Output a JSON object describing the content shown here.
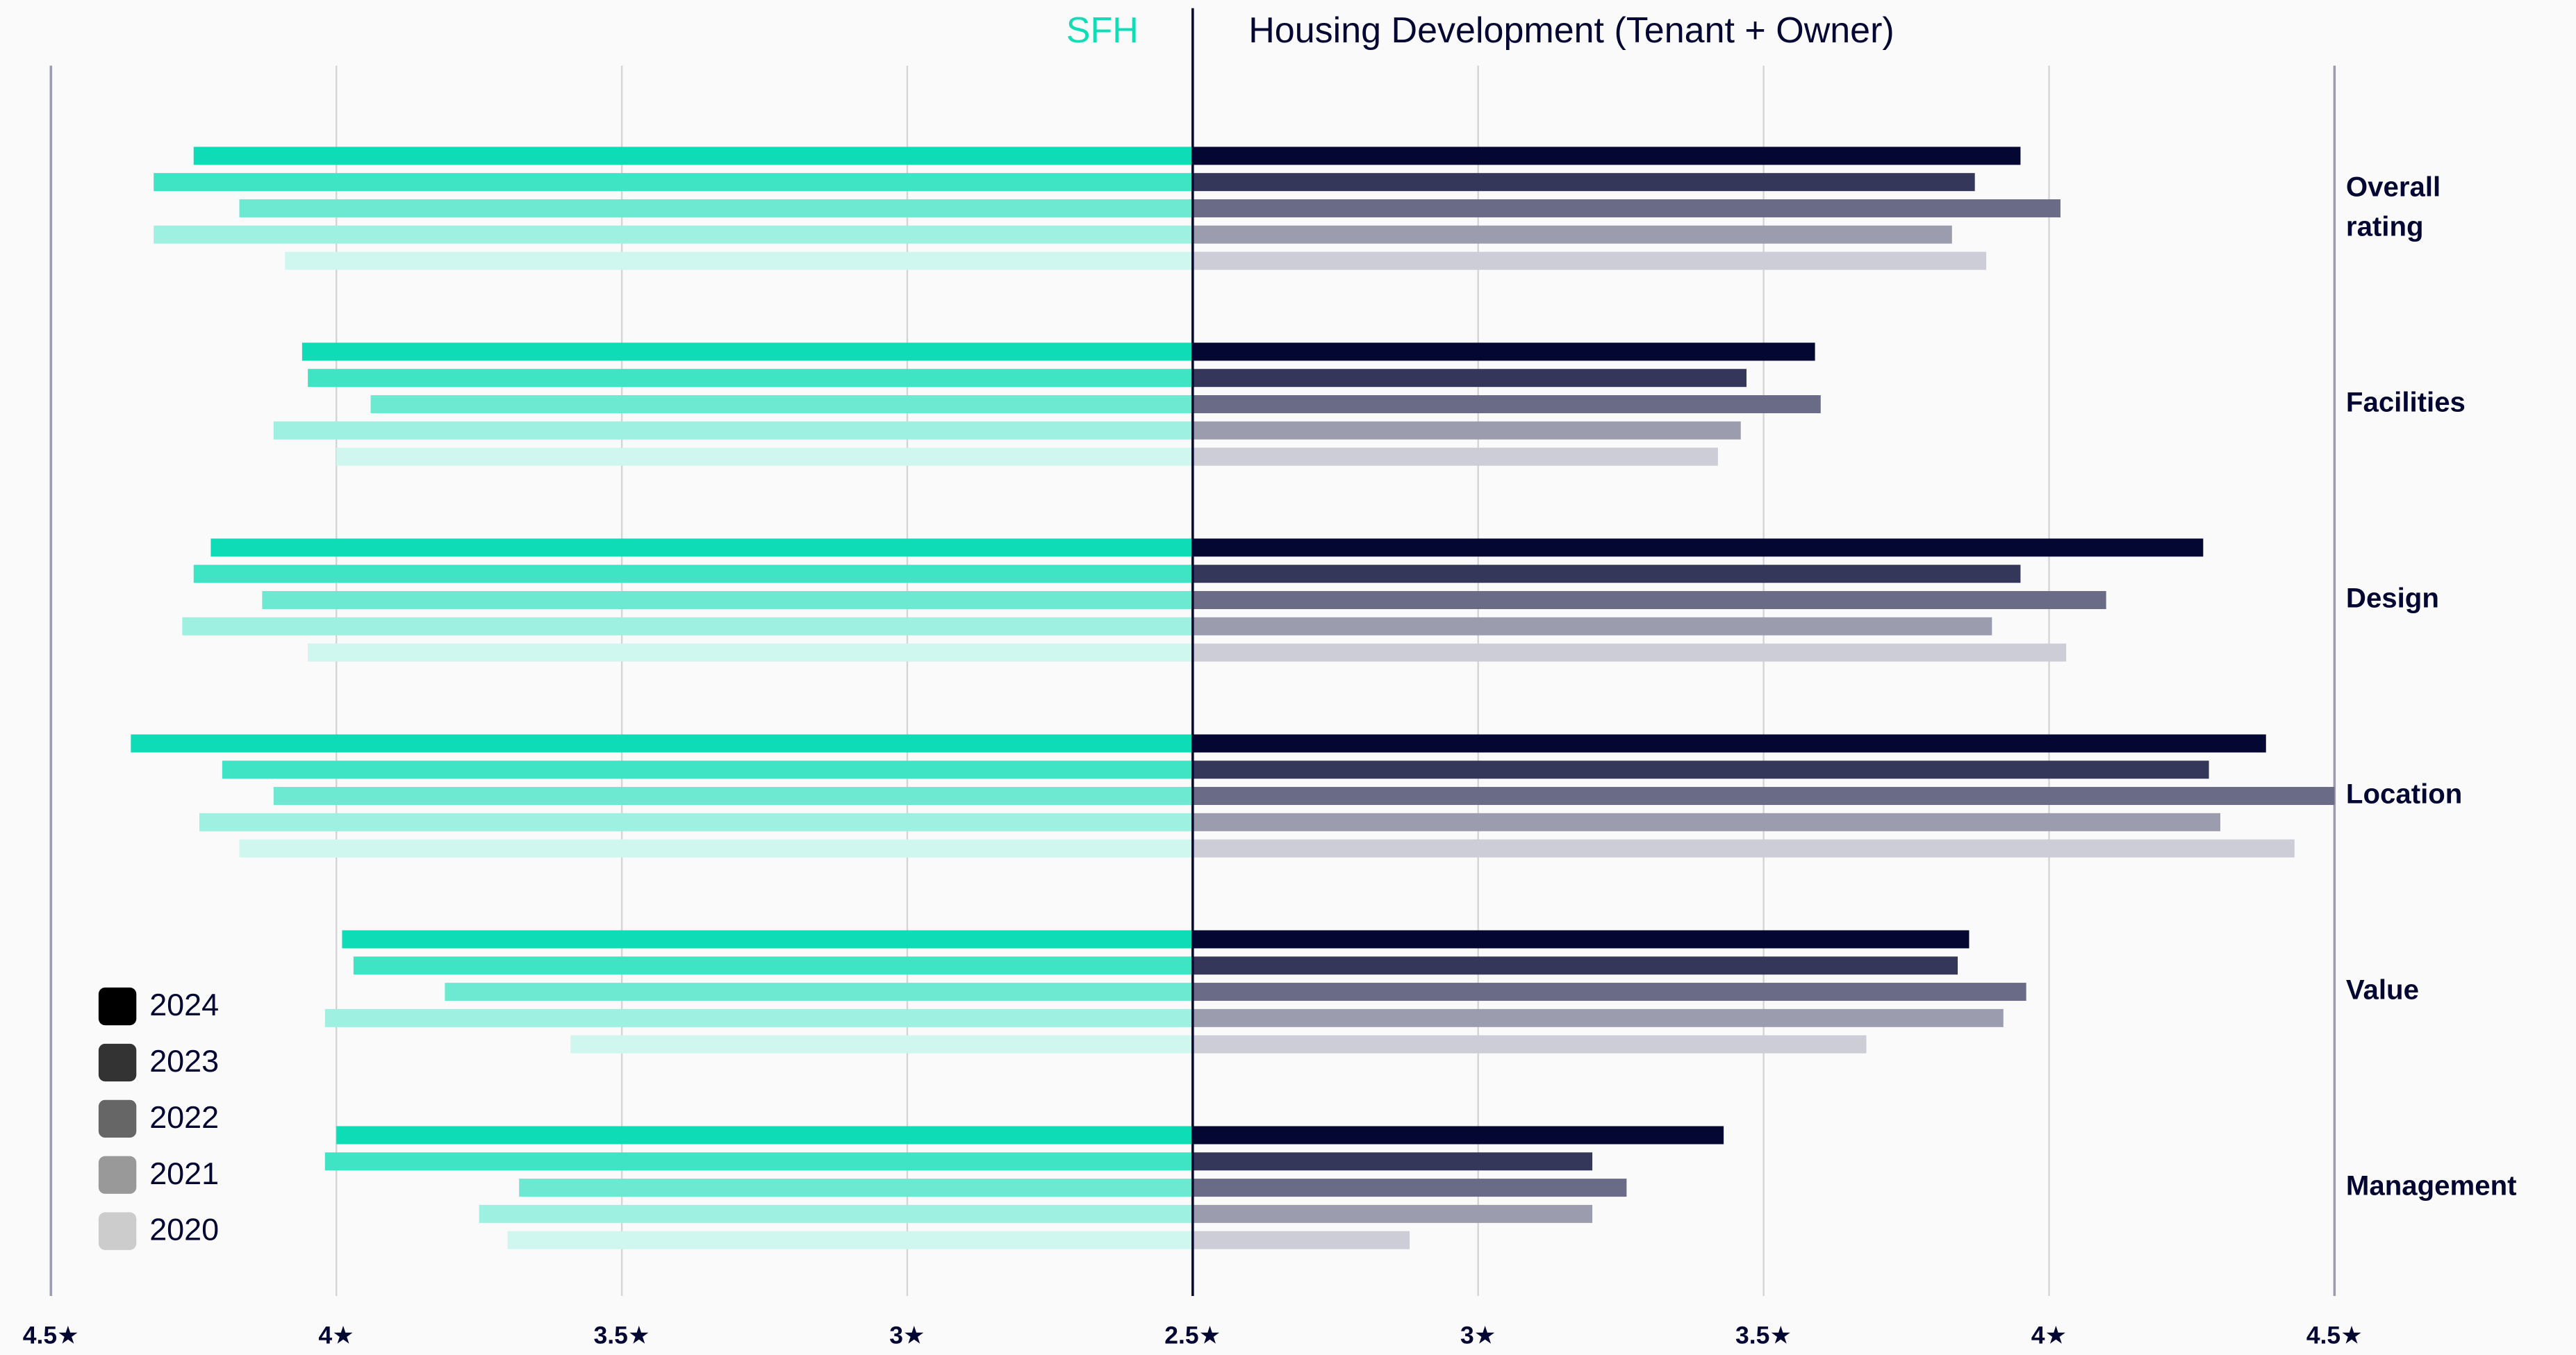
{
  "chart_data": {
    "type": "butterfly_bar",
    "categories": [
      "Overall rating",
      "Facilities",
      "Design",
      "Location",
      "Value",
      "Management"
    ],
    "legend": {
      "position": "lower left",
      "items": [
        {
          "name": "2024",
          "color": "#000000"
        },
        {
          "name": "2023",
          "color": "#333333"
        },
        {
          "name": "2022",
          "color": "#666666"
        },
        {
          "name": "2021",
          "color": "#999999"
        },
        {
          "name": "2020",
          "color": "#cccccc"
        }
      ]
    },
    "grid": true,
    "panels": [
      {
        "title": "SFH",
        "title_color": "#10dcb6",
        "x_reversed": true,
        "xlim": [
          2.5,
          4.5
        ],
        "xticks": [
          {
            "value": 2.5,
            "label": "2.5★"
          },
          {
            "value": 3,
            "label": "3★"
          },
          {
            "value": 3.5,
            "label": "3.5★"
          },
          {
            "value": 4,
            "label": "4★"
          },
          {
            "value": 4.5,
            "label": "4.5★"
          }
        ],
        "series": [
          {
            "color": "#0ddcb6",
            "values": [
              4.25,
              4.06,
              4.22,
              4.36,
              3.99,
              4.0
            ]
          },
          {
            "color": "#3ee4c4",
            "values": [
              4.32,
              4.05,
              4.25,
              4.2,
              3.97,
              4.02
            ]
          },
          {
            "color": "#6ee9d1",
            "values": [
              4.17,
              3.94,
              4.13,
              4.11,
              3.81,
              3.68
            ]
          },
          {
            "color": "#9ef1e0",
            "values": [
              4.32,
              4.11,
              4.27,
              4.24,
              4.02,
              3.75
            ]
          },
          {
            "color": "#cff7ef",
            "values": [
              4.09,
              4.0,
              4.05,
              4.17,
              3.59,
              3.7
            ]
          }
        ]
      },
      {
        "title": "Housing Development (Tenant + Owner)",
        "title_color": "#050733",
        "x_reversed": false,
        "xlim": [
          2.5,
          4.5
        ],
        "xticks": [
          {
            "value": 2.5,
            "label": "2.5★"
          },
          {
            "value": 3,
            "label": "3★"
          },
          {
            "value": 3.5,
            "label": "3.5★"
          },
          {
            "value": 4,
            "label": "4★"
          },
          {
            "value": 4.5,
            "label": "4.5★"
          }
        ],
        "series": [
          {
            "color": "#050733",
            "values": [
              3.95,
              3.59,
              4.27,
              4.38,
              3.86,
              3.43
            ]
          },
          {
            "color": "#34365a",
            "values": [
              3.87,
              3.47,
              3.95,
              4.28,
              3.84,
              3.2
            ]
          },
          {
            "color": "#6a6b86",
            "values": [
              4.02,
              3.6,
              4.1,
              4.5,
              3.96,
              3.26
            ]
          },
          {
            "color": "#9c9caf",
            "values": [
              3.83,
              3.46,
              3.9,
              4.3,
              3.92,
              3.2
            ]
          },
          {
            "color": "#cdcdd7",
            "values": [
              3.89,
              3.42,
              4.03,
              4.43,
              3.68,
              2.88
            ]
          }
        ]
      }
    ]
  }
}
